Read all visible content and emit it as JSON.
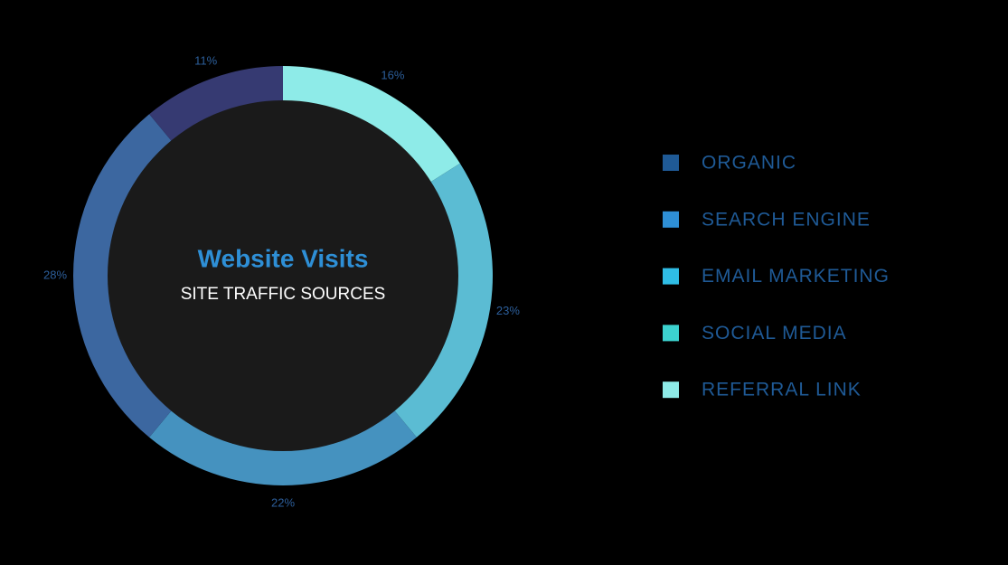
{
  "chart_data": {
    "type": "donut",
    "title": "Website Visits",
    "subtitle": "SITE TRAFFIC SOURCES",
    "categories": [
      "ORGANIC",
      "SEARCH ENGINE",
      "EMAIL MARKETING",
      "SOCIAL MEDIA",
      "REFERRAL LINK"
    ],
    "values": [
      11,
      28,
      22,
      23,
      16
    ],
    "value_labels": [
      "11%",
      "28%",
      "22%",
      "23%",
      "16%"
    ],
    "colors": [
      "#363a72",
      "#3c67a0",
      "#4592bf",
      "#5bbcd3",
      "#8eebe8"
    ],
    "legend_colors": [
      "#1f5a96",
      "#2e8fd6",
      "#2fbde6",
      "#3cd2cf",
      "#8eebe8"
    ]
  }
}
